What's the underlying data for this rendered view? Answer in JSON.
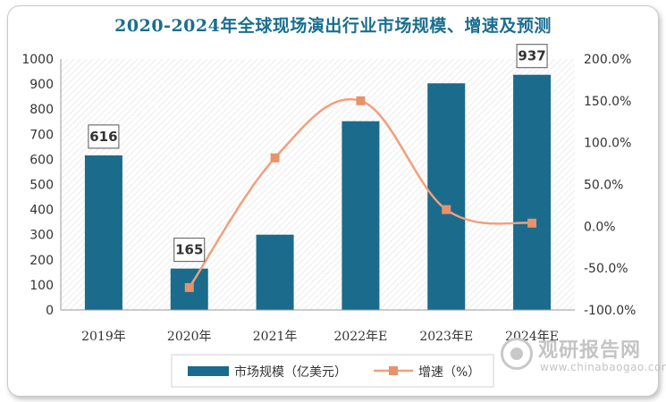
{
  "chart_data": {
    "type": "bar+line",
    "title": "2020-2024年全球现场演出行业市场规模、增速及预测",
    "categories": [
      "2019年",
      "2020年",
      "2021年",
      "2022年E",
      "2023年E",
      "2024年E"
    ],
    "series": [
      {
        "name": "市场规模（亿美元）",
        "type": "bar",
        "axis": "left",
        "values": [
          616,
          165,
          300,
          752,
          903,
          937
        ],
        "data_labels": [
          "616",
          "165",
          "",
          "",
          "",
          "937"
        ],
        "color": "#1b6b8c"
      },
      {
        "name": "增速（%）",
        "type": "line",
        "axis": "right",
        "values": [
          null,
          -73.2,
          81.8,
          150.0,
          20.0,
          3.8
        ],
        "color": "#f0a07c"
      }
    ],
    "y_left": {
      "min": 0,
      "max": 1000,
      "ticks": [
        "0",
        "100",
        "200",
        "300",
        "400",
        "500",
        "600",
        "700",
        "800",
        "900",
        "1000"
      ]
    },
    "y_right": {
      "min": -100,
      "max": 200,
      "ticks": [
        "-100.0%",
        "-50.0%",
        "0.0%",
        "50.0%",
        "100.0%",
        "150.0%",
        "200.0%"
      ]
    },
    "grid": false,
    "legend_position": "bottom"
  },
  "watermark": {
    "text_cn": "观研报告网",
    "text_en": "www.chinabaogao.com"
  }
}
